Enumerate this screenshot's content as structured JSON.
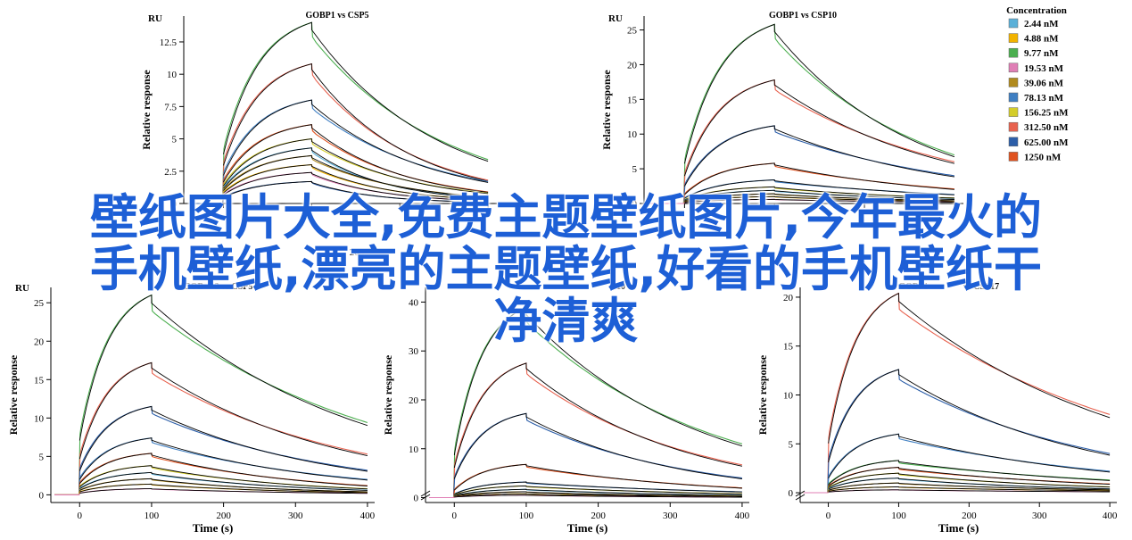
{
  "overlay": {
    "line1": "壁纸图片大全,免费主题壁纸图片,今年最火的",
    "line2": "手机壁纸,漂亮的主题壁纸,好看的手机壁纸干",
    "line3": "净清爽"
  },
  "legend": {
    "title": "Concentration",
    "entries": [
      {
        "label": "2.44 nM",
        "color": "#5bb0d8"
      },
      {
        "label": "4.88 nM",
        "color": "#f2b300"
      },
      {
        "label": "9.77 nM",
        "color": "#4caf50"
      },
      {
        "label": "19.53 nM",
        "color": "#e07fb6"
      },
      {
        "label": "39.06 nM",
        "color": "#b08a1e"
      },
      {
        "label": "78.13 nM",
        "color": "#3f7fc2"
      },
      {
        "label": "156.25 nM",
        "color": "#d4cd2a"
      },
      {
        "label": "312.50 nM",
        "color": "#e8624f"
      },
      {
        "label": "625.00 nM",
        "color": "#2c5ea8"
      },
      {
        "label": "1250 nM",
        "color": "#e0521f"
      }
    ]
  },
  "chart_data": [
    {
      "type": "line",
      "title": "GOBP1 vs CSP5",
      "ylabel": "Relative response",
      "unit_label": "RU",
      "xlim": [
        -45,
        310
      ],
      "ylim": [
        0,
        14.5
      ],
      "xticks": [
        0,
        100,
        200,
        300
      ],
      "yticks": [
        0,
        2.5,
        5,
        7.5,
        10,
        12.5
      ],
      "ytick_labels": [
        "0",
        "2.5",
        "5",
        "7.5",
        "10",
        "12.5"
      ],
      "assoc_end": 100,
      "dissoc_end": 300,
      "peaks": [
        14.0,
        10.8,
        8.0,
        6.1,
        5.0,
        4.3,
        3.7,
        3.0,
        2.4,
        1.7
      ],
      "ends": [
        3.4,
        1.8,
        1.7,
        0.9,
        0.8,
        0.4,
        0.5,
        0.3,
        0.2,
        0.1
      ],
      "jump": 0.55,
      "colors_order": [
        2,
        7,
        5,
        9,
        6,
        0,
        4,
        1,
        3,
        8
      ]
    },
    {
      "type": "line",
      "title": "GOBP1 vs CSP10",
      "ylabel": "Relative response",
      "unit_label": "RU",
      "xlim": [
        -45,
        310
      ],
      "ylim": [
        0,
        27
      ],
      "xticks": [
        0,
        100,
        200,
        300
      ],
      "yticks": [
        0,
        5,
        10,
        15,
        20,
        25
      ],
      "ytick_labels": [
        "0",
        "5",
        "10",
        "15",
        "20",
        "25"
      ],
      "assoc_end": 100,
      "dissoc_end": 300,
      "peaks": [
        25.8,
        17.8,
        11.2,
        5.8,
        3.4,
        2.4,
        1.9,
        1.4,
        1.0,
        0.6
      ],
      "ends": [
        7.0,
        6.0,
        4.0,
        2.1,
        1.3,
        0.8,
        0.6,
        0.4,
        0.3,
        0.2
      ],
      "jump": 0.45,
      "colors_order": [
        2,
        7,
        8,
        9,
        5,
        6,
        0,
        4,
        1,
        3
      ]
    },
    {
      "type": "line",
      "title": "GOBP2 vs CSP5",
      "ylabel": "Relative response",
      "unit_label": "RU",
      "xlim": [
        -40,
        410
      ],
      "ylim": [
        -1,
        27
      ],
      "xticks": [
        0,
        100,
        200,
        300,
        400
      ],
      "yticks": [
        0,
        5,
        10,
        15,
        20,
        25
      ],
      "ytick_labels": [
        "0",
        "5",
        "10",
        "15",
        "20",
        "25"
      ],
      "assoc_end": 100,
      "dissoc_end": 400,
      "peaks": [
        26.0,
        17.2,
        11.5,
        7.4,
        5.4,
        3.8,
        2.9,
        2.1,
        1.4,
        0.8
      ],
      "ends": [
        9.4,
        5.3,
        3.2,
        2.0,
        1.2,
        0.8,
        0.6,
        0.4,
        0.3,
        0.2
      ],
      "jump": 0.55,
      "colors_order": [
        2,
        7,
        8,
        5,
        9,
        6,
        0,
        4,
        1,
        3
      ]
    },
    {
      "type": "line",
      "title": "",
      "ylabel": "Relative response",
      "unit_label": "RU",
      "xlim": [
        -40,
        410
      ],
      "ylim": [
        -1,
        43
      ],
      "xticks": [
        0,
        100,
        200,
        300,
        400
      ],
      "yticks": [
        0,
        10,
        20,
        30,
        40
      ],
      "ytick_labels": [
        "0",
        "10",
        "20",
        "30",
        "40"
      ],
      "assoc_end": 100,
      "dissoc_end": 400,
      "peaks": [
        39.0,
        27.5,
        17.2,
        6.8,
        3.2,
        2.4,
        1.7,
        1.2,
        0.8,
        0.5
      ],
      "ends": [
        11.0,
        6.7,
        4.0,
        2.0,
        1.2,
        0.8,
        0.5,
        0.3,
        0.2,
        0.1
      ],
      "jump": 0.45,
      "colors_order": [
        2,
        7,
        8,
        9,
        5,
        6,
        0,
        4,
        1,
        3
      ]
    },
    {
      "type": "line",
      "title": "",
      "ylabel": "Relative response",
      "unit_label": "RU",
      "xlim": [
        -40,
        410
      ],
      "ylim": [
        -1,
        21
      ],
      "xticks": [
        0,
        100,
        200,
        300,
        400
      ],
      "yticks": [
        0,
        5,
        10,
        15,
        20
      ],
      "ytick_labels": [
        "0",
        "5",
        "10",
        "15",
        "20"
      ],
      "assoc_end": 100,
      "dissoc_end": 400,
      "peaks": [
        20.4,
        12.6,
        6.0,
        3.3,
        2.6,
        2.0,
        1.5,
        1.0,
        0.6,
        0.3
      ],
      "ends": [
        8.0,
        4.0,
        2.2,
        1.3,
        0.9,
        0.6,
        0.4,
        0.3,
        0.2,
        0.1
      ],
      "jump": 0.5,
      "colors_order": [
        7,
        8,
        5,
        2,
        9,
        6,
        0,
        4,
        1,
        3
      ]
    }
  ],
  "partial_labels": {
    "panel1_xtick_200_fragment": "200",
    "panel3_title_fragment_left": "GOB",
    "panel3_title_fragment_right": "2 vs CSP5",
    "panel4_title_fragment": "P10",
    "panel5_title_fragment": "GOBP1",
    "panel5_title_fragment_right": "vs CSP17",
    "xlabel": "Time (s)"
  }
}
